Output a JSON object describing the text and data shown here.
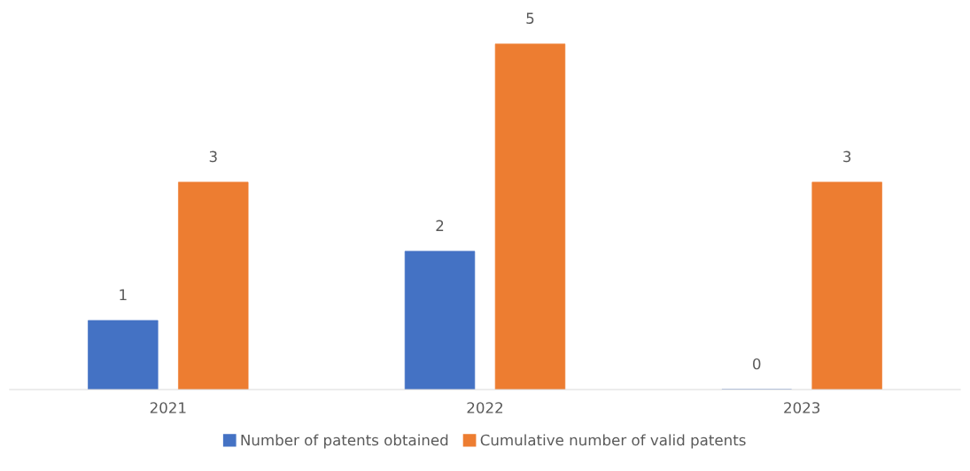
{
  "chart_data": {
    "type": "bar",
    "categories": [
      "2021",
      "2022",
      "2023"
    ],
    "series": [
      {
        "name": "Number of patents obtained",
        "color": "#4472c4",
        "values": [
          1,
          2,
          0
        ]
      },
      {
        "name": "Cumulative number of valid patents",
        "color": "#ed7d31",
        "values": [
          3,
          5,
          3
        ]
      }
    ],
    "data_labels": true,
    "grid": false,
    "legend": "bottom",
    "tick_labels": "x"
  }
}
